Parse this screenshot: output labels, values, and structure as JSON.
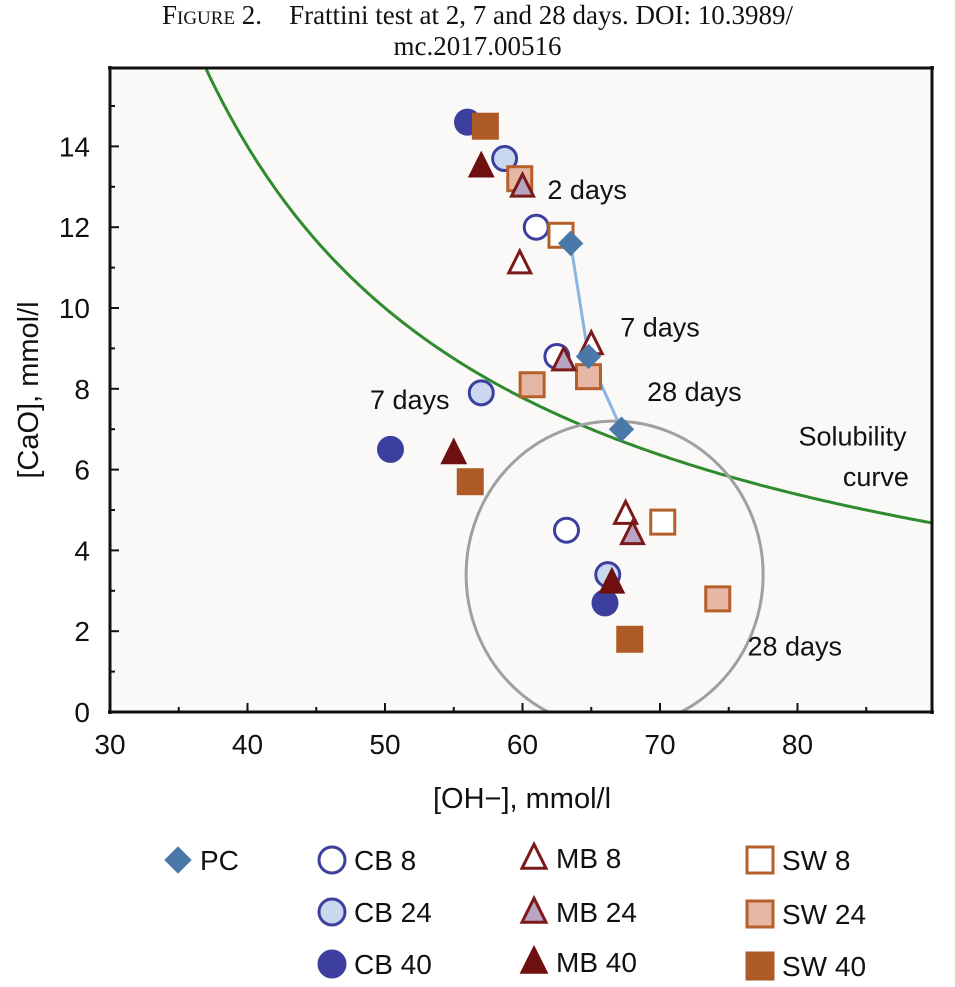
{
  "caption": {
    "label": "Figure 2.",
    "line1": "Frattini test at 2, 7 and 28 days. DOI: 10.3989/",
    "line2": "mc.2017.00516"
  },
  "chart_data": {
    "type": "scatter",
    "xlabel": "[OH−], mmol/l",
    "ylabel": "[CaO], mmol/l",
    "xlim": [
      30,
      90
    ],
    "ylim": [
      0,
      16
    ],
    "x_ticks": [
      30,
      40,
      50,
      60,
      70,
      80
    ],
    "y_ticks": [
      0,
      2,
      4,
      6,
      8,
      10,
      12,
      14
    ],
    "grid": false,
    "legend_position": "bottom",
    "series": [
      {
        "name": "PC",
        "marker": "diamond",
        "color": "#4a78a8",
        "fill": "#4a78a8",
        "points": [
          [
            63.5,
            11.6
          ],
          [
            64.8,
            8.8
          ],
          [
            67.2,
            7.0
          ]
        ]
      },
      {
        "name": "CB 8",
        "marker": "circle",
        "color": "#3b3f9e",
        "fill": "#ffffff",
        "points": [
          [
            61.0,
            12.0
          ],
          [
            62.5,
            8.8
          ],
          [
            63.2,
            4.5
          ]
        ]
      },
      {
        "name": "CB 24",
        "marker": "circle",
        "color": "#3b3f9e",
        "fill": "#c9d8ee",
        "points": [
          [
            58.7,
            13.7
          ],
          [
            57.0,
            7.9
          ],
          [
            66.2,
            3.4
          ]
        ]
      },
      {
        "name": "CB 40",
        "marker": "circle",
        "color": "#3d3f9f",
        "fill": "#3d3f9f",
        "points": [
          [
            56.0,
            14.6
          ],
          [
            50.4,
            6.5
          ],
          [
            66.0,
            2.7
          ]
        ]
      },
      {
        "name": "MB 8",
        "marker": "triangle",
        "color": "#7a1a1a",
        "fill": "#ffffff",
        "points": [
          [
            59.8,
            11.1
          ],
          [
            65.0,
            9.1
          ],
          [
            67.5,
            4.9
          ]
        ]
      },
      {
        "name": "MB 24",
        "marker": "triangle",
        "color": "#7a1a1a",
        "fill": "#b9a4c4",
        "points": [
          [
            60.0,
            13.0
          ],
          [
            63.0,
            8.7
          ],
          [
            68.0,
            4.4
          ]
        ]
      },
      {
        "name": "MB 40",
        "marker": "triangle",
        "color": "#6e1010",
        "fill": "#6e1010",
        "points": [
          [
            57.0,
            13.5
          ],
          [
            55.0,
            6.4
          ],
          [
            66.5,
            3.2
          ]
        ]
      },
      {
        "name": "SW 8",
        "marker": "square",
        "color": "#b5602a",
        "fill": "#ffffff",
        "points": [
          [
            62.8,
            11.8
          ],
          [
            70.2,
            4.7
          ]
        ]
      },
      {
        "name": "SW 24",
        "marker": "square",
        "color": "#b5602a",
        "fill": "#e7b7a6",
        "points": [
          [
            59.8,
            13.2
          ],
          [
            60.7,
            8.1
          ],
          [
            64.8,
            8.3
          ],
          [
            74.2,
            2.8
          ]
        ]
      },
      {
        "name": "SW 40",
        "marker": "square",
        "color": "#ad5a26",
        "fill": "#ad5a26",
        "points": [
          [
            57.3,
            14.5
          ],
          [
            56.2,
            5.7
          ],
          [
            67.8,
            1.8
          ]
        ]
      }
    ],
    "pc_connector": {
      "color": "#8ab4e2",
      "points": [
        [
          63.5,
          11.6
        ],
        [
          64.8,
          8.8
        ],
        [
          67.2,
          7.0
        ]
      ]
    },
    "solubility_curve": {
      "color": "#2e8b2e",
      "formula": "CaO = 350 / (OH - 15)",
      "x_range": [
        37.0,
        90.0
      ]
    },
    "ellipse": {
      "color": "#a0a0a0",
      "center": [
        66.7,
        3.4
      ],
      "radius_x": 10.8,
      "radius_y": 3.8
    },
    "annotations": [
      {
        "text": "2 days",
        "x": 64.7,
        "y": 12.7,
        "anchor": "middle"
      },
      {
        "text": "7 days",
        "x": 70.0,
        "y": 9.3,
        "anchor": "middle"
      },
      {
        "text": "28 days",
        "x": 72.5,
        "y": 7.7,
        "anchor": "middle"
      },
      {
        "text": "7 days",
        "x": 51.8,
        "y": 7.5,
        "anchor": "middle"
      },
      {
        "text": "Solubility",
        "x": 84.0,
        "y": 6.6,
        "anchor": "middle"
      },
      {
        "text": "curve",
        "x": 85.7,
        "y": 5.6,
        "anchor": "middle"
      },
      {
        "text": "28 days",
        "x": 79.8,
        "y": 1.4,
        "anchor": "middle"
      }
    ]
  }
}
